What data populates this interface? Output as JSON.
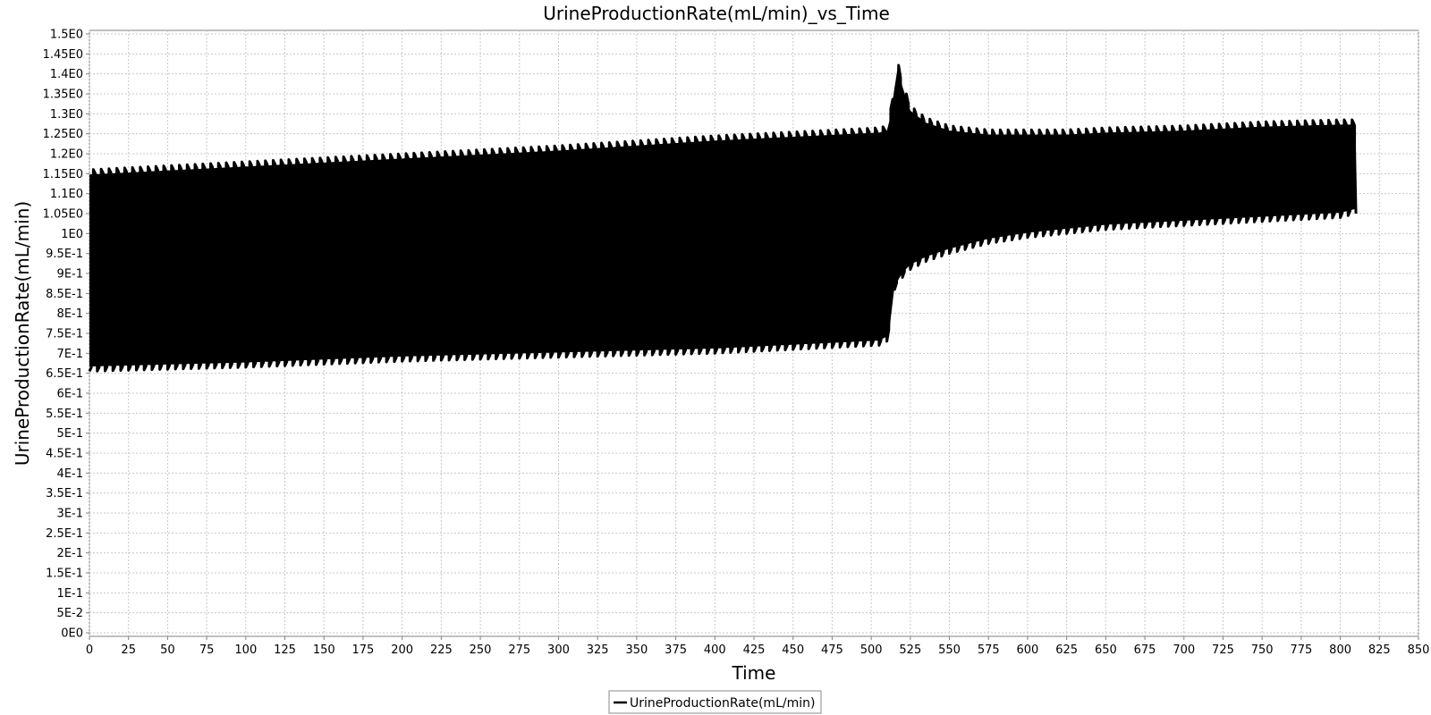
{
  "chart_data": {
    "type": "line",
    "title": "UrineProductionRate(mL/min)_vs_Time",
    "xlabel": "Time",
    "ylabel": "UrineProductionRate(mL/min)",
    "xlim": [
      0,
      850
    ],
    "ylim": [
      0,
      1.5
    ],
    "x_ticks": [
      0,
      25,
      50,
      75,
      100,
      125,
      150,
      175,
      200,
      225,
      250,
      275,
      300,
      325,
      350,
      375,
      400,
      425,
      450,
      475,
      500,
      525,
      550,
      575,
      600,
      625,
      650,
      675,
      700,
      725,
      750,
      775,
      800,
      825,
      850
    ],
    "y_ticks": [
      0,
      0.05,
      0.1,
      0.15,
      0.2,
      0.25,
      0.3,
      0.35,
      0.4,
      0.45,
      0.5,
      0.55,
      0.6,
      0.65,
      0.7,
      0.75,
      0.8,
      0.85,
      0.9,
      0.95,
      1.0,
      1.05,
      1.1,
      1.15,
      1.2,
      1.25,
      1.3,
      1.35,
      1.4,
      1.45,
      1.5
    ],
    "y_tick_labels": [
      "0E0",
      "5E-2",
      "1E-1",
      "1.5E-1",
      "2E-1",
      "2.5E-1",
      "3E-1",
      "3.5E-1",
      "4E-1",
      "4.5E-1",
      "5E-1",
      "5.5E-1",
      "6E-1",
      "6.5E-1",
      "7E-1",
      "7.5E-1",
      "8E-1",
      "8.5E-1",
      "9E-1",
      "9.5E-1",
      "1E0",
      "1.05E0",
      "1.1E0",
      "1.15E0",
      "1.2E0",
      "1.25E0",
      "1.3E0",
      "1.35E0",
      "1.4E0",
      "1.45E0",
      "1.5E0"
    ],
    "grid": true,
    "legend_position": "bottom-center",
    "series": [
      {
        "name": "UrineProductionRate(mL/min)",
        "color": "#000000",
        "oscillation_period": 5,
        "envelope": {
          "time": [
            0,
            100,
            200,
            300,
            400,
            505,
            510,
            512,
            515,
            517,
            520,
            525,
            535,
            550,
            575,
            600,
            625,
            650,
            700,
            750,
            800,
            810
          ],
          "upper": [
            1.16,
            1.18,
            1.2,
            1.22,
            1.245,
            1.265,
            1.27,
            1.3,
            1.38,
            1.43,
            1.38,
            1.32,
            1.29,
            1.27,
            1.26,
            1.26,
            1.26,
            1.265,
            1.27,
            1.28,
            1.285,
            1.285
          ],
          "lower": [
            0.655,
            0.665,
            0.68,
            0.69,
            0.7,
            0.72,
            0.73,
            0.76,
            0.86,
            0.87,
            0.89,
            0.91,
            0.93,
            0.95,
            0.975,
            0.99,
            1.0,
            1.01,
            1.02,
            1.03,
            1.04,
            1.05
          ]
        }
      }
    ]
  }
}
